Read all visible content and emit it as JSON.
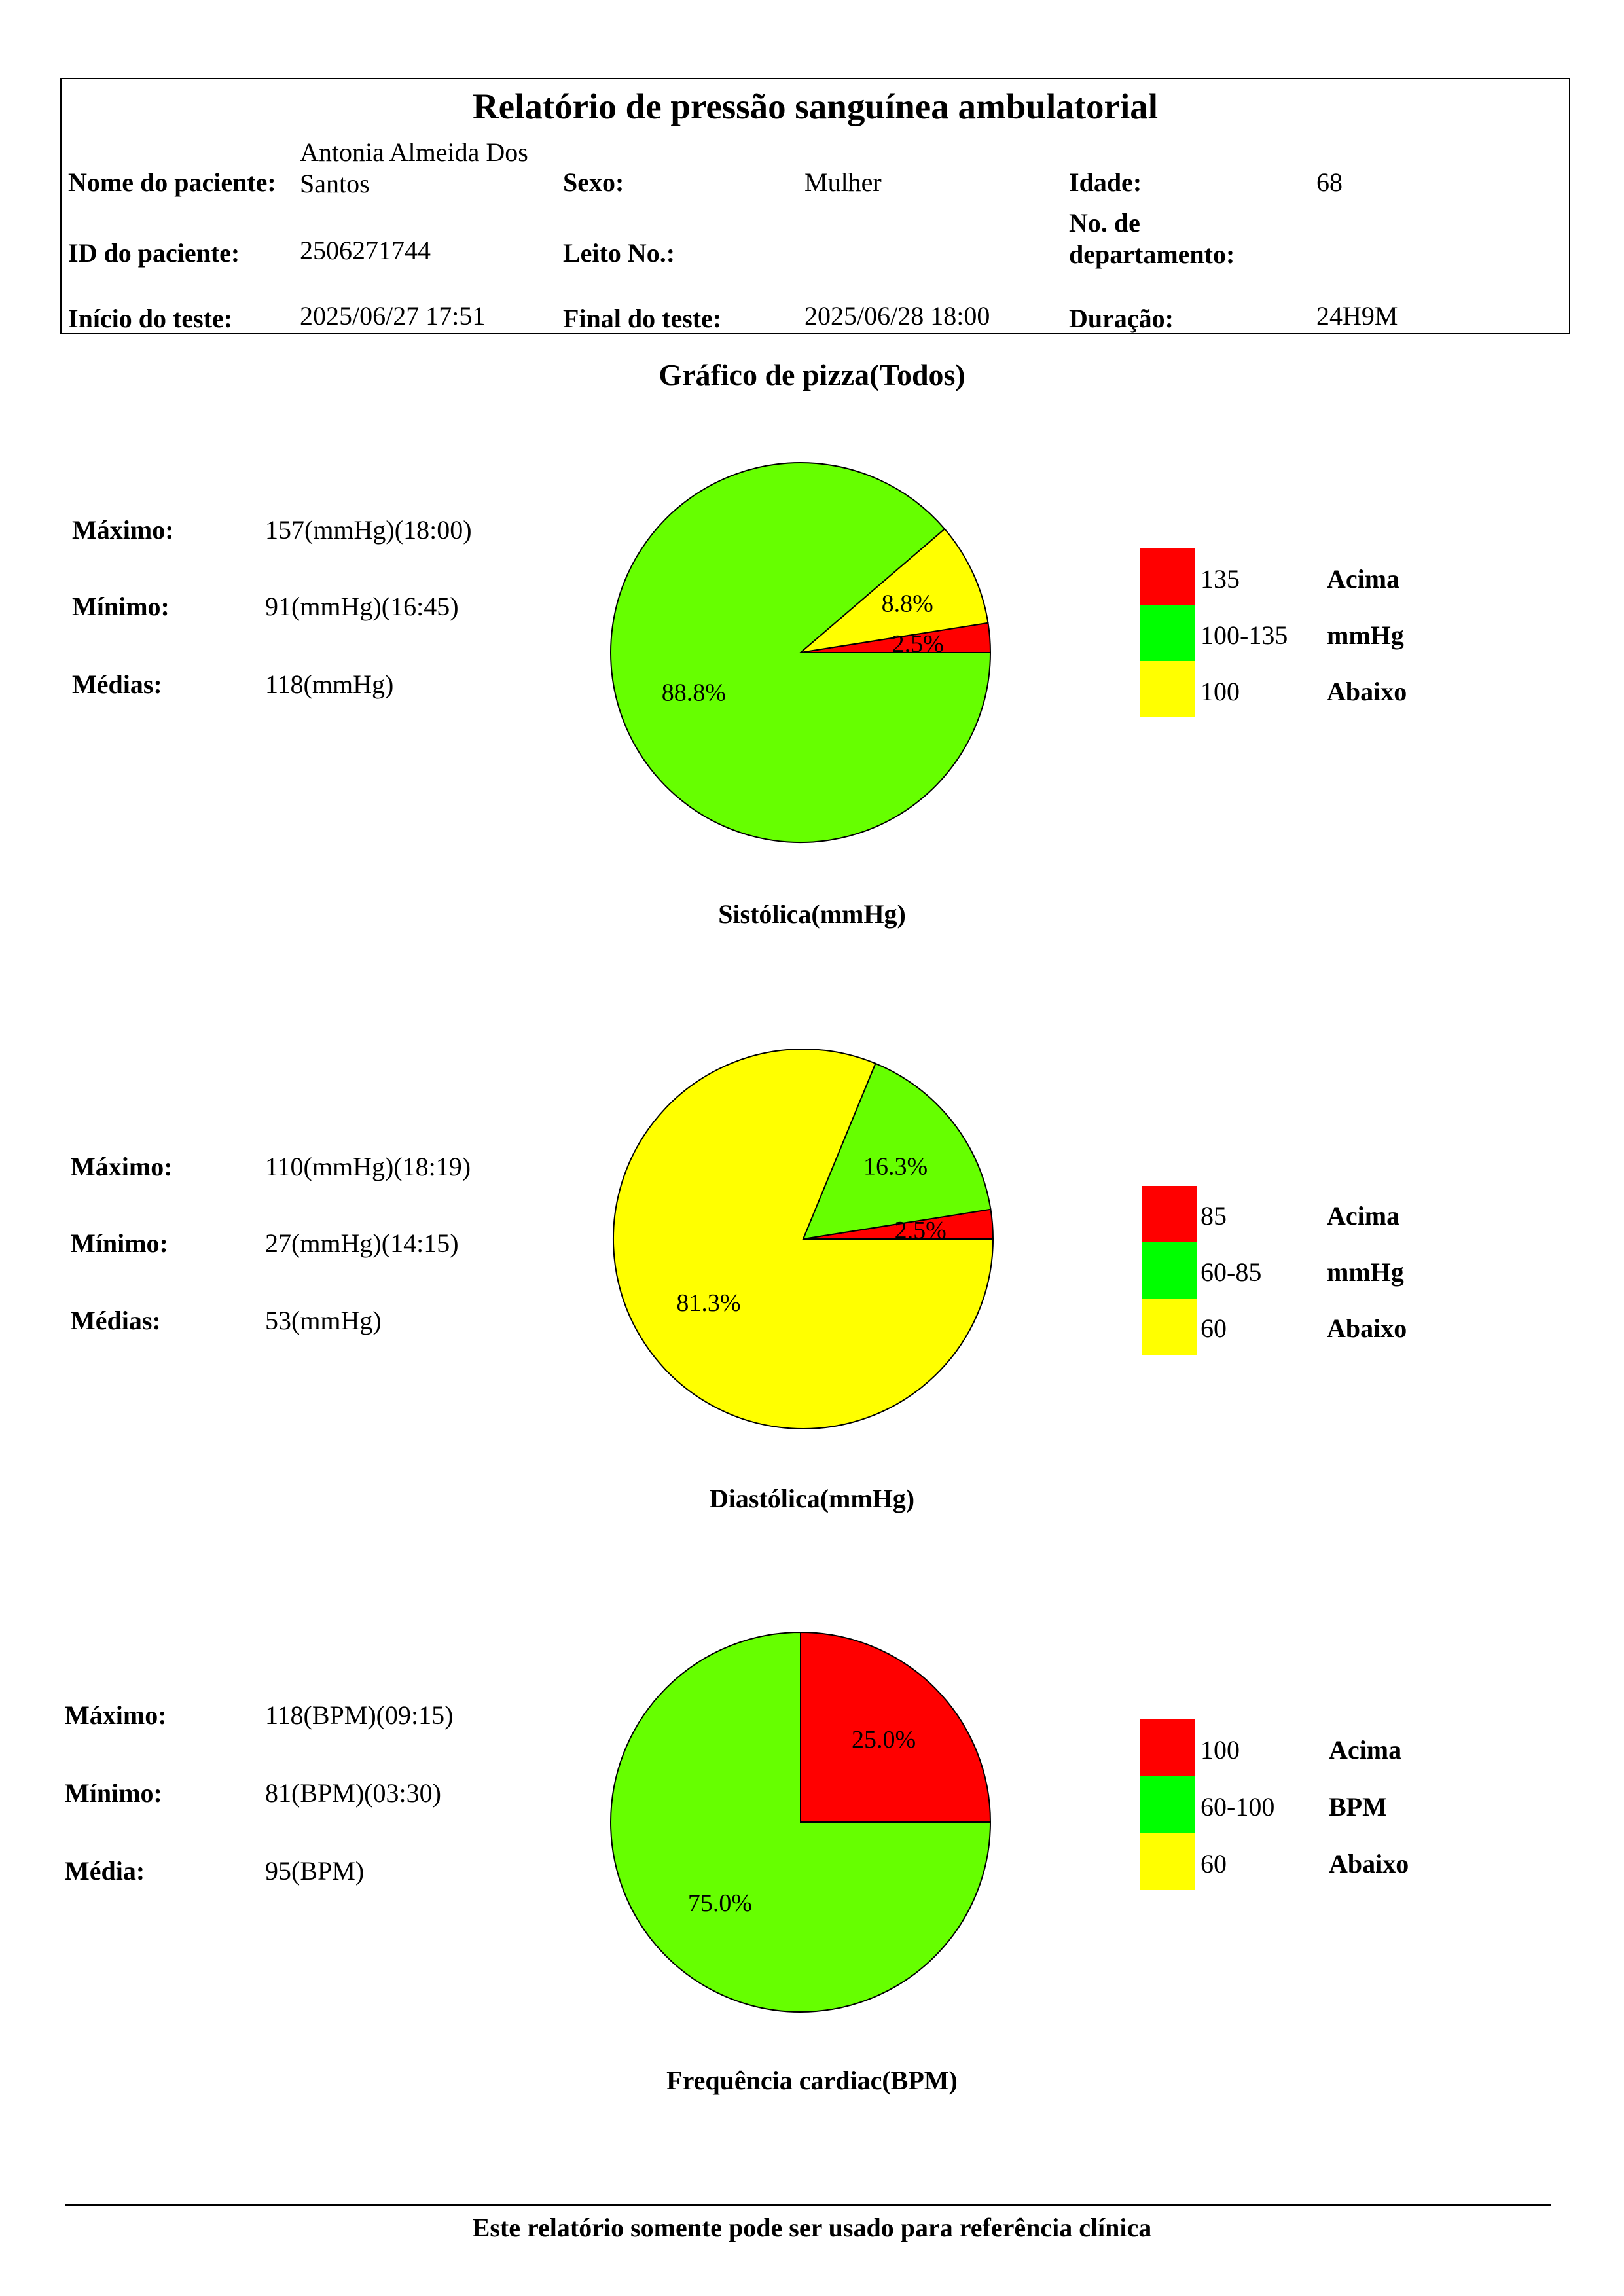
{
  "header": {
    "title": "Relatório de pressão sanguínea ambulatorial",
    "patient_name_label": "Nome do paciente:",
    "patient_name": "Antonia Almeida Dos Santos",
    "sex_label": "Sexo:",
    "sex": "Mulher",
    "age_label": "Idade:",
    "age": "68",
    "patient_id_label": "ID do paciente:",
    "patient_id": "2506271744",
    "bed_label": "Leito No.:",
    "bed": "",
    "department_label": "No. de departamento:",
    "department": "",
    "start_label": "Início do teste:",
    "start": "2025/06/27 17:51",
    "end_label": "Final do teste:",
    "end": "2025/06/28 18:00",
    "duration_label": "Duração:",
    "duration": "24H9M"
  },
  "section_title": "Gráfico de pizza(Todos)",
  "colors": {
    "above": "#ff0000",
    "normal_slice": "#66ff00",
    "normal_legend": "#00ff00",
    "below": "#ffff00"
  },
  "chart_data": [
    {
      "type": "pie",
      "title": "Sistólica(mmHg)",
      "slices": [
        {
          "label": "88.8%",
          "value": 88.8,
          "category": "normal"
        },
        {
          "label": "8.8%",
          "value": 8.8,
          "category": "below"
        },
        {
          "label": "2.5%",
          "value": 2.5,
          "category": "above"
        }
      ],
      "stats": [
        {
          "label": "Máximo:",
          "value": "157(mmHg)(18:00)"
        },
        {
          "label": "Mínimo:",
          "value": "91(mmHg)(16:45)"
        },
        {
          "label": "Médias:",
          "value": "118(mmHg)"
        }
      ],
      "legend": [
        {
          "range": "135",
          "word": "Acima",
          "category": "above"
        },
        {
          "range": "100-135",
          "word": "mmHg",
          "category": "normal"
        },
        {
          "range": "100",
          "word": "Abaixo",
          "category": "below"
        }
      ]
    },
    {
      "type": "pie",
      "title": "Diastólica(mmHg)",
      "slices": [
        {
          "label": "81.3%",
          "value": 81.3,
          "category": "below"
        },
        {
          "label": "16.3%",
          "value": 16.3,
          "category": "normal"
        },
        {
          "label": "2.5%",
          "value": 2.5,
          "category": "above"
        }
      ],
      "stats": [
        {
          "label": "Máximo:",
          "value": "110(mmHg)(18:19)"
        },
        {
          "label": "Mínimo:",
          "value": "27(mmHg)(14:15)"
        },
        {
          "label": "Médias:",
          "value": "53(mmHg)"
        }
      ],
      "legend": [
        {
          "range": "85",
          "word": "Acima",
          "category": "above"
        },
        {
          "range": "60-85",
          "word": "mmHg",
          "category": "normal"
        },
        {
          "range": "60",
          "word": "Abaixo",
          "category": "below"
        }
      ]
    },
    {
      "type": "pie",
      "title": "Frequência cardiac(BPM)",
      "slices": [
        {
          "label": "75.0%",
          "value": 75.0,
          "category": "normal"
        },
        {
          "label": "25.0%",
          "value": 25.0,
          "category": "above"
        }
      ],
      "stats": [
        {
          "label": "Máximo:",
          "value": "118(BPM)(09:15)"
        },
        {
          "label": "Mínimo:",
          "value": "81(BPM)(03:30)"
        },
        {
          "label": "Média:",
          "value": "95(BPM)"
        }
      ],
      "legend": [
        {
          "range": "100",
          "word": "Acima",
          "category": "above"
        },
        {
          "range": "60-100",
          "word": "BPM",
          "category": "normal"
        },
        {
          "range": "60",
          "word": "Abaixo",
          "category": "below"
        }
      ]
    }
  ],
  "footer": "Este relatório somente pode ser usado para referência clínica"
}
